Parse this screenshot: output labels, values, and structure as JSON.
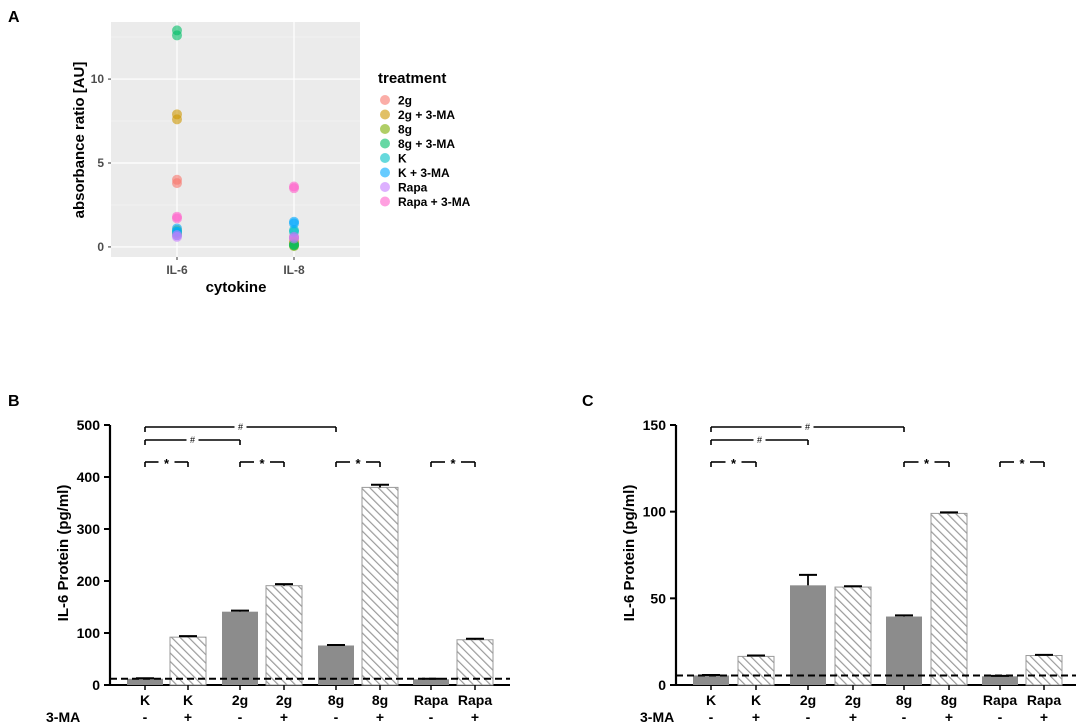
{
  "chart_data": [
    {
      "id": "A",
      "type": "scatter",
      "panel_label": "A",
      "xlabel": "cytokine",
      "ylabel": "absorbance ratio [AU]",
      "categories": [
        "IL-6",
        "IL-8"
      ],
      "ylim": [
        -0.6,
        13.4
      ],
      "yticks": [
        0,
        5,
        10
      ],
      "legend_title": "treatment",
      "legend_position": "right",
      "series": [
        {
          "name": "2g",
          "color": "#F8766D",
          "values": {
            "IL-6": [
              3.8,
              4.0
            ],
            "IL-8": [
              0.5,
              0.6
            ]
          }
        },
        {
          "name": "2g + 3-MA",
          "color": "#CD9600",
          "values": {
            "IL-6": [
              7.6,
              7.9
            ],
            "IL-8": [
              0.2,
              0.3
            ]
          }
        },
        {
          "name": "8g",
          "color": "#7CAE00",
          "values": {
            "IL-6": [
              1.0,
              0.8
            ],
            "IL-8": [
              0.1,
              0.05
            ]
          }
        },
        {
          "name": "8g + 3-MA",
          "color": "#00BE67",
          "values": {
            "IL-6": [
              12.6,
              12.9
            ],
            "IL-8": [
              0.1,
              0.15
            ]
          }
        },
        {
          "name": "K",
          "color": "#00BFC4",
          "values": {
            "IL-6": [
              0.9,
              0.7
            ],
            "IL-8": [
              1.0,
              0.9
            ]
          }
        },
        {
          "name": "K + 3-MA",
          "color": "#00A9FF",
          "values": {
            "IL-6": [
              0.9,
              1.1
            ],
            "IL-8": [
              1.4,
              1.5
            ]
          }
        },
        {
          "name": "Rapa",
          "color": "#C77CFF",
          "values": {
            "IL-6": [
              0.6,
              0.7
            ],
            "IL-8": [
              0.6,
              0.5
            ]
          }
        },
        {
          "name": "Rapa + 3-MA",
          "color": "#FF61CC",
          "values": {
            "IL-6": [
              1.7,
              1.8
            ],
            "IL-8": [
              3.5,
              3.6
            ]
          }
        }
      ]
    },
    {
      "id": "B",
      "type": "bar",
      "panel_label": "B",
      "ylabel": "IL-6 Protein (pg/ml)",
      "ylim": [
        0,
        500
      ],
      "yticks": [
        0,
        100,
        200,
        300,
        400,
        500
      ],
      "categories": [
        "K",
        "K",
        "2g",
        "2g",
        "8g",
        "8g",
        "Rapa",
        "Rapa"
      ],
      "row_label": "3-MA",
      "signs": [
        "-",
        "+",
        "-",
        "+",
        "-",
        "+",
        "-",
        "+"
      ],
      "values": [
        12,
        92,
        141,
        191,
        76,
        380,
        11,
        87
      ],
      "errors": [
        1,
        2,
        2,
        3,
        1,
        5,
        1,
        2
      ],
      "hatched": [
        false,
        true,
        false,
        true,
        false,
        true,
        false,
        true
      ],
      "baseline": 12,
      "sig_brackets": [
        {
          "from": 0,
          "to": 1,
          "label": "*",
          "level": 1
        },
        {
          "from": 2,
          "to": 3,
          "label": "*",
          "level": 1
        },
        {
          "from": 4,
          "to": 5,
          "label": "*",
          "level": 1
        },
        {
          "from": 6,
          "to": 7,
          "label": "*",
          "level": 1
        },
        {
          "from": 0,
          "to": 2,
          "label": "#",
          "level": 2
        },
        {
          "from": 0,
          "to": 4,
          "label": "#",
          "level": 3
        }
      ]
    },
    {
      "id": "C",
      "type": "bar",
      "panel_label": "C",
      "ylabel": "IL-6 Protein (pg/ml)",
      "ylim": [
        0,
        150
      ],
      "yticks": [
        0,
        50,
        100,
        150
      ],
      "categories": [
        "K",
        "K",
        "2g",
        "2g",
        "8g",
        "8g",
        "Rapa",
        "Rapa"
      ],
      "row_label": "3-MA",
      "signs": [
        "-",
        "+",
        "-",
        "+",
        "-",
        "+",
        "-",
        "+"
      ],
      "values": [
        5.5,
        16.5,
        57.5,
        56.5,
        39.5,
        99,
        5,
        17
      ],
      "errors": [
        0.3,
        0.5,
        6,
        0.5,
        0.7,
        0.6,
        0.3,
        0.4
      ],
      "hatched": [
        false,
        true,
        false,
        true,
        false,
        true,
        false,
        true
      ],
      "baseline": 5.5,
      "sig_brackets": [
        {
          "from": 0,
          "to": 1,
          "label": "*",
          "level": 1
        },
        {
          "from": 4,
          "to": 5,
          "label": "*",
          "level": 1
        },
        {
          "from": 6,
          "to": 7,
          "label": "*",
          "level": 1
        },
        {
          "from": 0,
          "to": 2,
          "label": "#",
          "level": 2
        },
        {
          "from": 0,
          "to": 4,
          "label": "#",
          "level": 3
        }
      ]
    }
  ],
  "colors": {
    "panel_bg": "#EBEBEB",
    "grid": "#FFFFFF",
    "bar_fill": "#8C8C8C",
    "hatch_line": "#9A9A9A",
    "axis": "#000000"
  }
}
